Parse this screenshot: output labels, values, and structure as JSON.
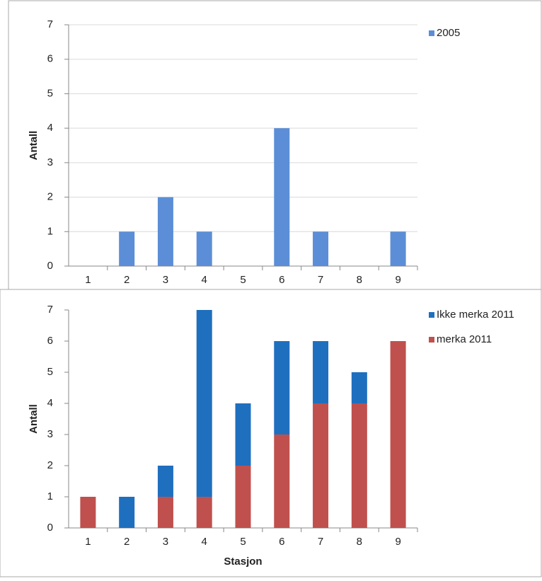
{
  "chart_data": [
    {
      "type": "bar",
      "y_label": "Antall",
      "categories": [
        "1",
        "2",
        "3",
        "4",
        "5",
        "6",
        "7",
        "8",
        "9"
      ],
      "series": [
        {
          "name": "2005",
          "color": "#5b8ed6",
          "values": [
            0,
            1,
            2,
            1,
            0,
            4,
            1,
            0,
            1
          ]
        }
      ],
      "ylim": [
        0,
        7
      ],
      "yticks": [
        0,
        1,
        2,
        3,
        4,
        5,
        6,
        7
      ],
      "grid": true,
      "legend": "top-right"
    },
    {
      "type": "stacked-bar",
      "y_label": "Antall",
      "x_label": "Stasjon",
      "categories": [
        "1",
        "2",
        "3",
        "4",
        "5",
        "6",
        "7",
        "8",
        "9"
      ],
      "series": [
        {
          "name": "Ikke merka 2011",
          "color": "#1f6fbf",
          "values": [
            0,
            1,
            1,
            6,
            2,
            3,
            2,
            1,
            0
          ]
        },
        {
          "name": "merka 2011",
          "color": "#c0504d",
          "values": [
            1,
            0,
            1,
            1,
            2,
            3,
            4,
            4,
            6
          ]
        }
      ],
      "ylim": [
        0,
        7
      ],
      "yticks": [
        0,
        1,
        2,
        3,
        4,
        5,
        6,
        7
      ],
      "grid": false,
      "legend": "top-right"
    }
  ]
}
